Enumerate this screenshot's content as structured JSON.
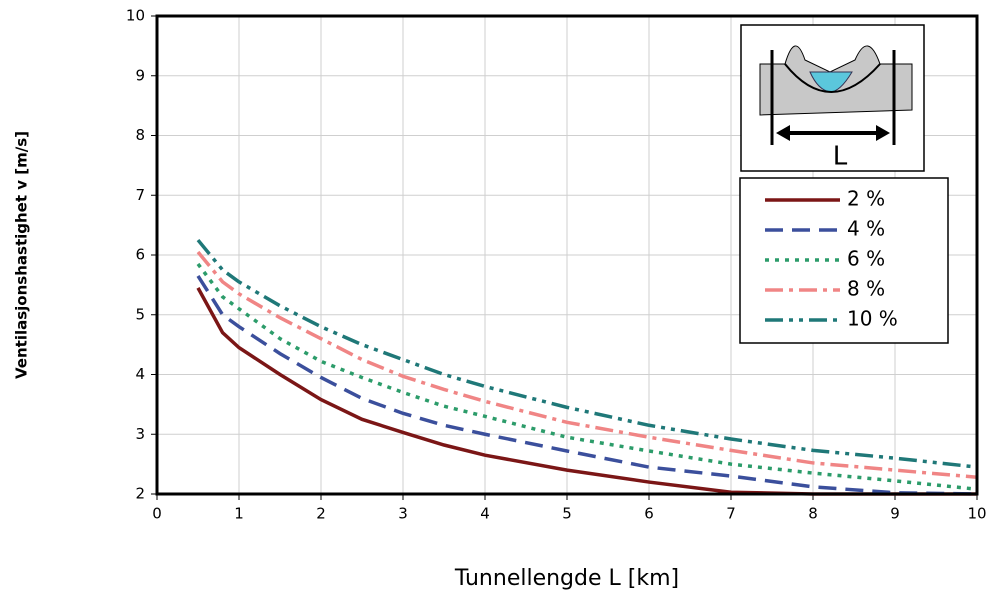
{
  "chart_data": {
    "type": "line",
    "x_label": "Tunnellengde L [km]",
    "y_label": "Ventilasjonshastighet v [m/s]",
    "annotations": [
      "L"
    ],
    "x": [
      0.5,
      0.8,
      1,
      1.5,
      2,
      2.5,
      3,
      3.5,
      4,
      5,
      6,
      7,
      8,
      9,
      10
    ],
    "series": [
      {
        "name": "2 %",
        "color": "#7b1616",
        "dash": "solid",
        "values": [
          5.45,
          4.7,
          4.45,
          4.0,
          3.58,
          3.25,
          3.03,
          2.82,
          2.65,
          2.4,
          2.2,
          2.03,
          2.0,
          2.0,
          2.0
        ]
      },
      {
        "name": "4 %",
        "color": "#3b4f9c",
        "dash": "dashed",
        "values": [
          5.65,
          5.0,
          4.8,
          4.35,
          3.95,
          3.6,
          3.35,
          3.15,
          3.0,
          2.72,
          2.45,
          2.3,
          2.12,
          2.02,
          2.0
        ]
      },
      {
        "name": "6 %",
        "color": "#2c9c6a",
        "dash": "dotted",
        "values": [
          5.85,
          5.3,
          5.1,
          4.6,
          4.22,
          3.95,
          3.7,
          3.47,
          3.3,
          2.95,
          2.72,
          2.5,
          2.35,
          2.22,
          2.08
        ]
      },
      {
        "name": "8 %",
        "color": "#f08585",
        "dash": "dashdot",
        "values": [
          6.05,
          5.55,
          5.35,
          4.95,
          4.6,
          4.25,
          3.97,
          3.75,
          3.55,
          3.2,
          2.95,
          2.73,
          2.52,
          2.4,
          2.28
        ]
      },
      {
        "name": "10 %",
        "color": "#1f7878",
        "dash": "dashdotdot",
        "values": [
          6.25,
          5.75,
          5.55,
          5.15,
          4.8,
          4.5,
          4.25,
          4.0,
          3.8,
          3.45,
          3.15,
          2.92,
          2.73,
          2.6,
          2.45
        ]
      }
    ],
    "xlim": [
      0,
      10
    ],
    "xticks": [
      0,
      1,
      2,
      3,
      4,
      5,
      6,
      7,
      8,
      9,
      10
    ],
    "ylim": [
      2,
      10
    ],
    "yticks": [
      2,
      3,
      4,
      5,
      6,
      7,
      8,
      9,
      10
    ],
    "grid": true,
    "legend": "upper right"
  }
}
